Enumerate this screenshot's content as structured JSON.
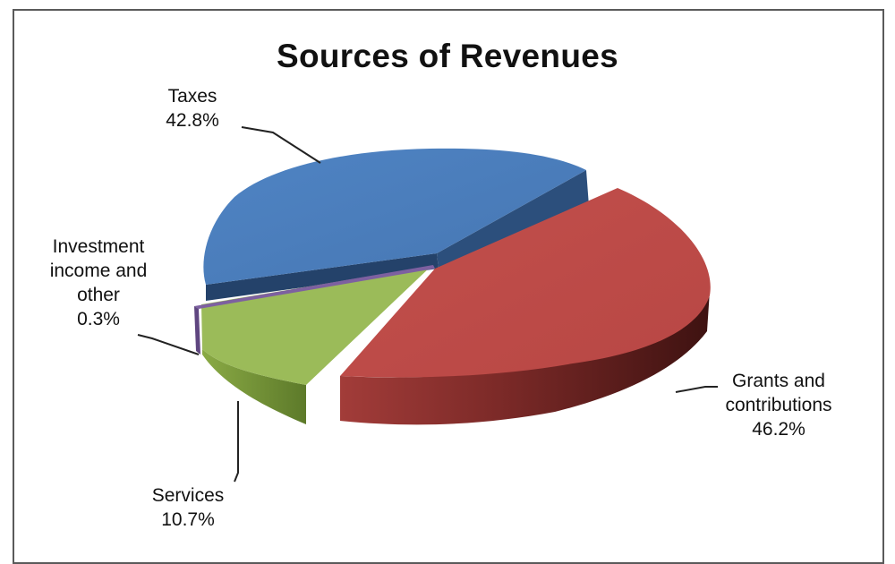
{
  "chart_data": {
    "type": "pie",
    "title": "Sources of Revenues",
    "slices": [
      {
        "name": "Taxes",
        "value": 42.8,
        "label": "42.8%",
        "color": "#4a7ebb"
      },
      {
        "name": "Grants and contributions",
        "value": 46.2,
        "label": "46.2%",
        "color": "#be4b48"
      },
      {
        "name": "Services",
        "value": 10.7,
        "label": "10.7%",
        "color": "#98b954"
      },
      {
        "name": "Investment income and other",
        "value": 0.3,
        "label": "0.3%",
        "color": "#7d60a0"
      }
    ],
    "legend": "none",
    "style": "3d-exploded"
  }
}
